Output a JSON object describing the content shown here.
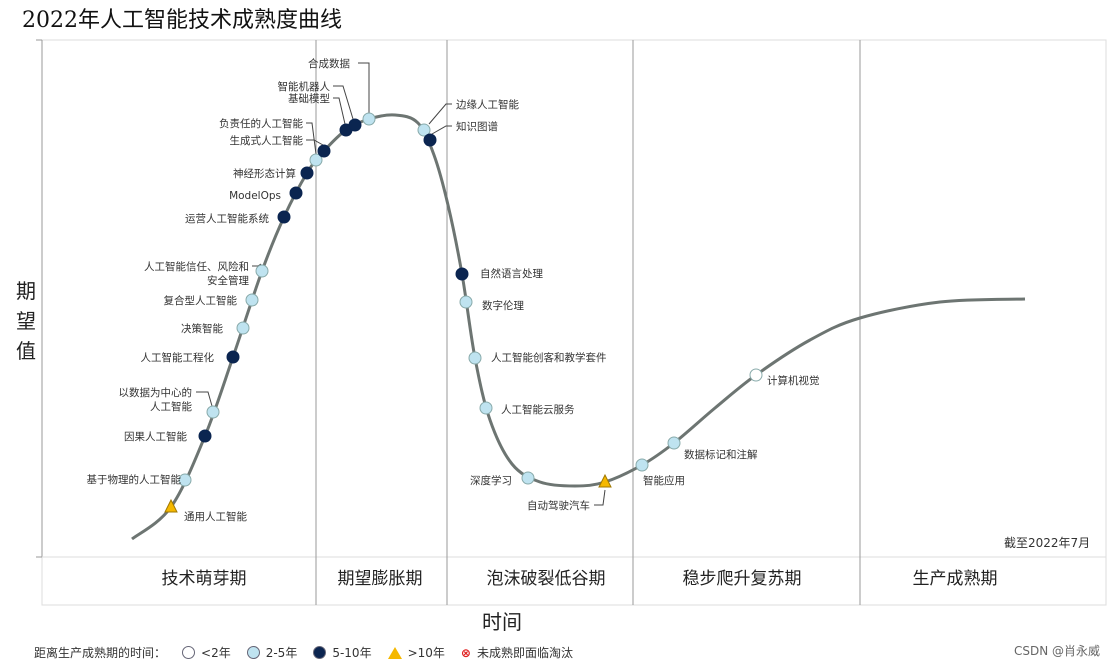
{
  "title": "2022年人工智能技术成熟度曲线",
  "y_axis_label": "期望值",
  "x_axis_label": "时间",
  "note": "截至2022年7月",
  "phases": [
    "技术萌芽期",
    "期望膨胀期",
    "泡沫破裂低谷期",
    "稳步爬升复苏期",
    "生产成熟期"
  ],
  "colors": {
    "lt2": "#ffffff",
    "y2to5": "#bfe3f0",
    "y5to10": "#0b2550",
    "gt10": "#f5b800",
    "obsolete": "#e02020",
    "curve": "#6d7572"
  },
  "items": [
    {
      "label": "通用人工智能",
      "cat": "gt10"
    },
    {
      "label": "基于物理的人工智能",
      "cat": "y2to5"
    },
    {
      "label": "因果人工智能",
      "cat": "y5to10"
    },
    {
      "label": "以数据为中心的",
      "label2": "人工智能",
      "cat": "y2to5"
    },
    {
      "label": "人工智能工程化",
      "cat": "y5to10"
    },
    {
      "label": "决策智能",
      "cat": "y2to5"
    },
    {
      "label": "复合型人工智能",
      "cat": "y2to5"
    },
    {
      "label": "人工智能信任、风险和",
      "label2": "安全管理",
      "cat": "y2to5"
    },
    {
      "label": "运营人工智能系统",
      "cat": "y5to10"
    },
    {
      "label": "ModelOps",
      "cat": "y5to10"
    },
    {
      "label": "神经形态计算",
      "cat": "y5to10"
    },
    {
      "label": "负责任的人工智能",
      "cat": "y2to5"
    },
    {
      "label": "生成式人工智能",
      "cat": "y5to10"
    },
    {
      "label": "基础模型",
      "cat": "y5to10"
    },
    {
      "label": "智能机器人",
      "cat": "y5to10"
    },
    {
      "label": "合成数据",
      "cat": "y2to5"
    },
    {
      "label": "边缘人工智能",
      "cat": "y2to5"
    },
    {
      "label": "知识图谱",
      "cat": "y5to10"
    },
    {
      "label": "自然语言处理",
      "cat": "y5to10"
    },
    {
      "label": "数字伦理",
      "cat": "y2to5"
    },
    {
      "label": "人工智能创客和教学套件",
      "cat": "y2to5"
    },
    {
      "label": "人工智能云服务",
      "cat": "y2to5"
    },
    {
      "label": "深度学习",
      "cat": "y2to5"
    },
    {
      "label": "自动驾驶汽车",
      "cat": "gt10"
    },
    {
      "label": "智能应用",
      "cat": "y2to5"
    },
    {
      "label": "数据标记和注解",
      "cat": "y2to5"
    },
    {
      "label": "计算机视觉",
      "cat": "lt2"
    }
  ],
  "legend": {
    "title": "距离生产成熟期的时间：",
    "lt2": "<2年",
    "y2to5": "2-5年",
    "y5to10": "5-10年",
    "gt10": ">10年",
    "obsolete": "未成熟即面临淘汰"
  },
  "credit": "CSDN @肖永威"
}
